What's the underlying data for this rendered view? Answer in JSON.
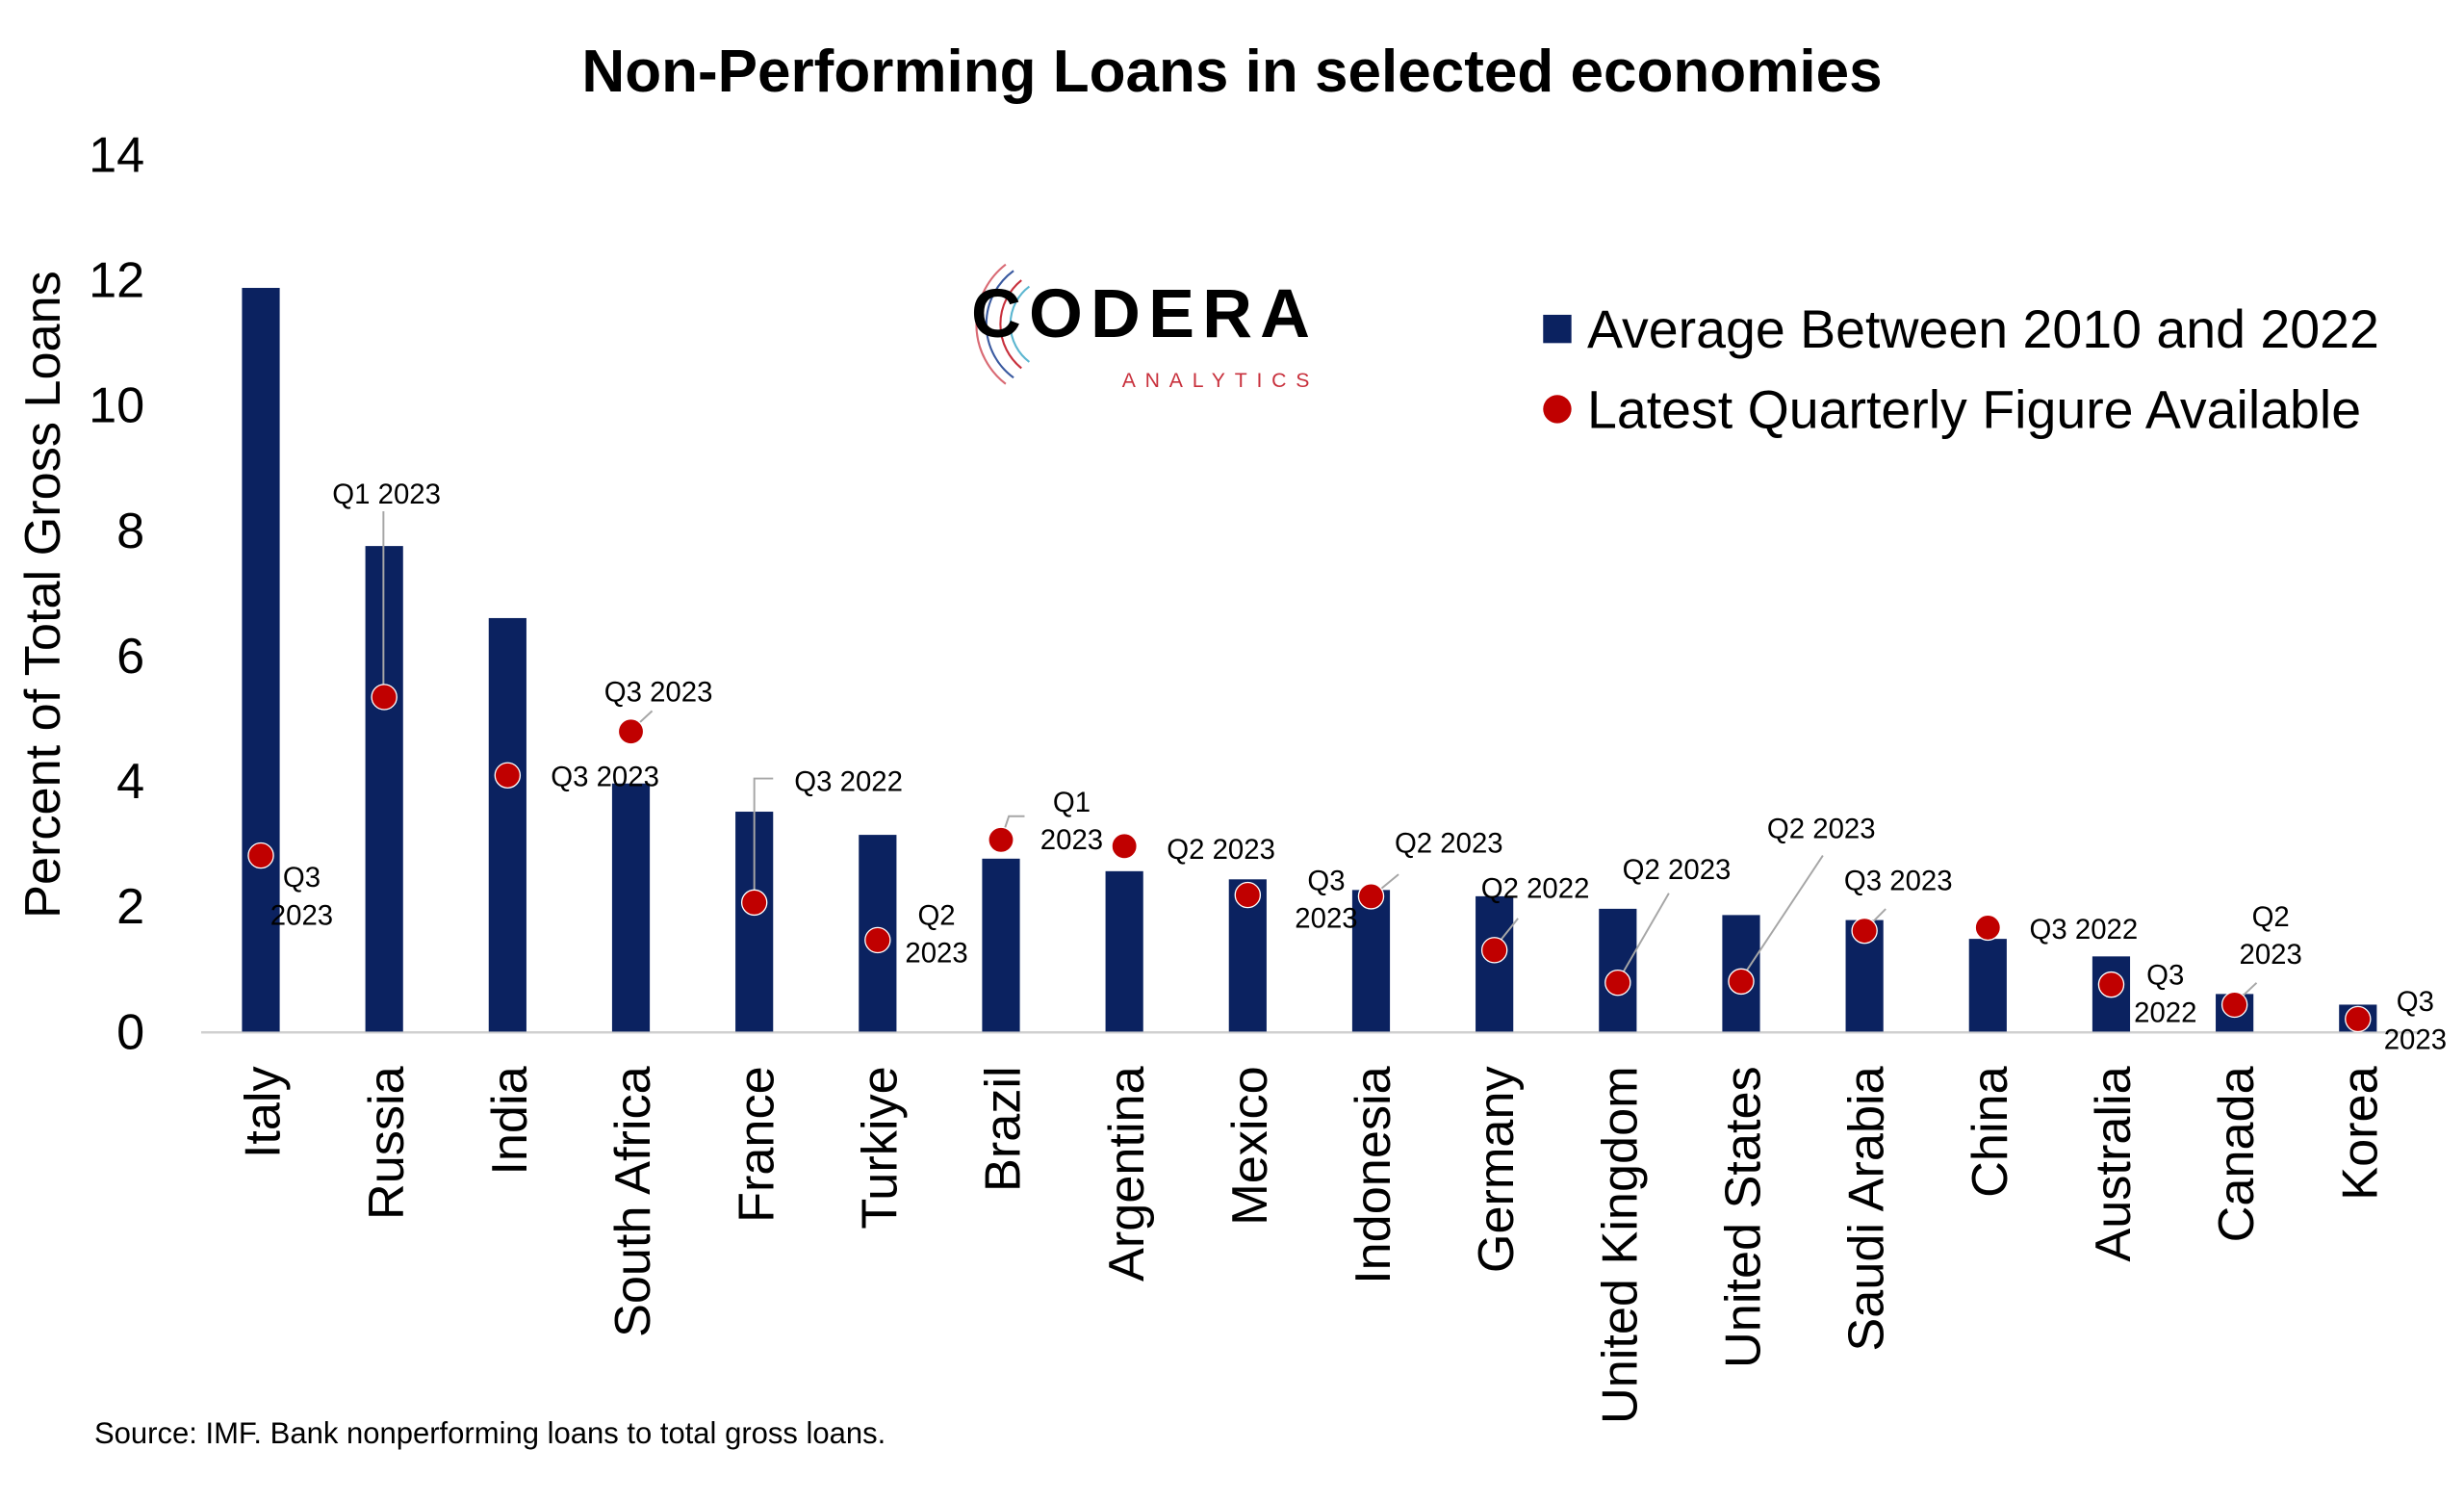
{
  "chart_data": {
    "type": "bar",
    "title": "Non-Performing Loans in selected economies",
    "xlabel": "",
    "ylabel": "Percent of Total Gross Loans",
    "ylim": [
      0,
      14
    ],
    "yticks": [
      0,
      2,
      4,
      6,
      8,
      10,
      12,
      14
    ],
    "grid": false,
    "legend_placement": "top-right",
    "categories": [
      "Italy",
      "Russia",
      "India",
      "South Africa",
      "France",
      "Turkiye",
      "Brazil",
      "Argentina",
      "Mexico",
      "Indonesia",
      "Germany",
      "United Kingdom",
      "United States",
      "Saudi Arabia",
      "China",
      "Australia",
      "Canada",
      "Korea"
    ],
    "series": [
      {
        "name": "Average Between 2010 and 2022",
        "kind": "bar",
        "color": "#0b2260",
        "values": [
          11.87,
          7.75,
          6.6,
          3.96,
          3.51,
          3.14,
          2.76,
          2.56,
          2.43,
          2.26,
          2.16,
          1.96,
          1.86,
          1.78,
          1.48,
          1.2,
          0.6,
          0.43
        ]
      },
      {
        "name": "Latest Quarterly Figure Available",
        "kind": "point",
        "color": "#c00000",
        "values": [
          2.81,
          5.34,
          4.09,
          4.79,
          2.06,
          1.46,
          3.06,
          2.96,
          2.18,
          2.16,
          1.3,
          0.78,
          0.8,
          1.61,
          1.66,
          0.75,
          0.43,
          0.2
        ],
        "labels": [
          "Q3 2023",
          "Q1 2023",
          "Q3 2023",
          "Q3 2023",
          "Q3 2022",
          "Q2 2023",
          "Q1 2023",
          "Q2 2023",
          "Q3 2023",
          "Q2 2023",
          "Q2 2022",
          "Q2 2023",
          "Q2 2023",
          "Q3 2023",
          "Q3 2022",
          "Q3 2022",
          "Q2 2023",
          "Q3 2023"
        ]
      }
    ],
    "source": "Source: IMF. Bank nonperforming loans to total gross loans."
  },
  "logo": {
    "name": "CODERA",
    "sub": "ANALYTICS"
  }
}
